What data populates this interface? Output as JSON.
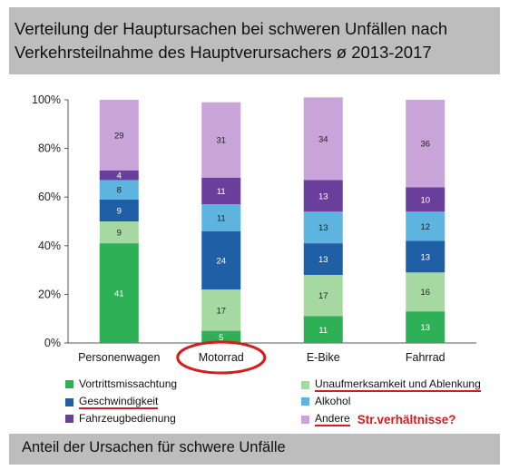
{
  "title": {
    "line1": "Verteilung der Hauptursachen bei schweren Unfällen nach",
    "line2": "Verkehrsteilnahme des Hauptverursachers ø 2013-2017"
  },
  "footer": "Anteil der Ursachen für schwere Unfälle",
  "annotation": "Str.verhältnisse?",
  "colors": {
    "highlight_red": "#d81b1b",
    "title_background": "#bdbdbd"
  },
  "chart_data": {
    "type": "bar",
    "stacked": true,
    "categories": [
      "Personenwagen",
      "Motorrad",
      "E-Bike",
      "Fahrrad"
    ],
    "ylim": [
      0,
      100
    ],
    "yticks": [
      "0%",
      "20%",
      "40%",
      "60%",
      "80%",
      "100%"
    ],
    "grid": false,
    "legend_position": "bottom",
    "highlighted_category": "Motorrad",
    "series": [
      {
        "name": "Vortrittsmissachtung",
        "color": "#2eb057",
        "values": [
          41,
          5,
          11,
          13
        ]
      },
      {
        "name": "Unaufmerksamkeit und Ablenkung",
        "color": "#a6d8a2",
        "values": [
          9,
          17,
          17,
          16
        ]
      },
      {
        "name": "Geschwindigkeit",
        "color": "#1e5fa6",
        "values": [
          9,
          24,
          13,
          13
        ]
      },
      {
        "name": "Alkohol",
        "color": "#5db5df",
        "values": [
          8,
          11,
          13,
          12
        ]
      },
      {
        "name": "Fahrzeugbedienung",
        "color": "#6a3f9c",
        "values": [
          4,
          11,
          13,
          10
        ]
      },
      {
        "name": "Andere",
        "color": "#c8a4d8",
        "values": [
          29,
          31,
          34,
          36
        ]
      }
    ]
  },
  "legend": [
    {
      "label": "Vortrittsmissachtung",
      "color": "#2eb057",
      "underlined": false
    },
    {
      "label": "Unaufmerksamkeit und Ablenkung",
      "color": "#a6d8a2",
      "underlined": true
    },
    {
      "label": "Geschwindigkeit",
      "color": "#1e5fa6",
      "underlined": true
    },
    {
      "label": "Alkohol",
      "color": "#5db5df",
      "underlined": false
    },
    {
      "label": "Fahrzeugbedienung",
      "color": "#6a3f9c",
      "underlined": false
    },
    {
      "label": "Andere",
      "color": "#c8a4d8",
      "underlined": true
    }
  ]
}
